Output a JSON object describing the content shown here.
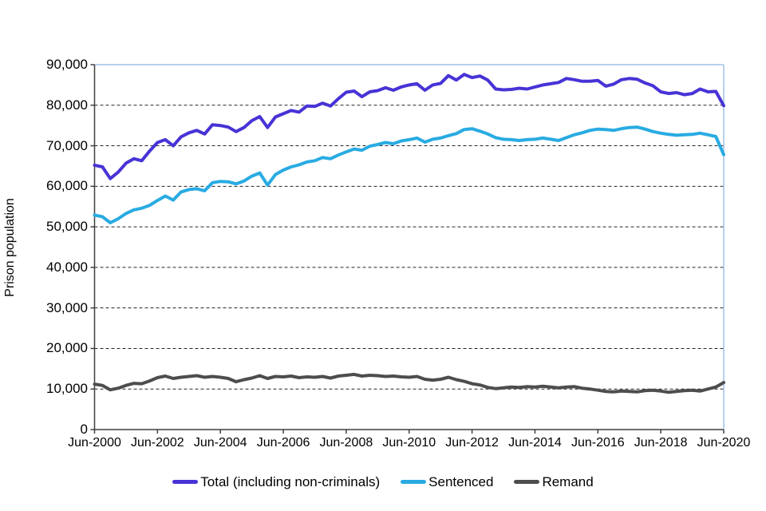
{
  "chart_data": {
    "type": "line",
    "title": "",
    "ylabel": "Prison population",
    "xlabel": "",
    "ylim": [
      0,
      90000
    ],
    "y_tick_step": 10000,
    "y_tick_labels": [
      "0",
      "10,000",
      "20,000",
      "30,000",
      "40,000",
      "50,000",
      "60,000",
      "70,000",
      "80,000",
      "90,000"
    ],
    "x_tick_labels": [
      "Jun-2000",
      "Jun-2002",
      "Jun-2004",
      "Jun-2006",
      "Jun-2008",
      "Jun-2010",
      "Jun-2012",
      "Jun-2014",
      "Jun-2016",
      "Jun-2018",
      "Jun-2020"
    ],
    "x_start": "Jun-2000",
    "x_end": "Jun-2020",
    "x_frequency": "quarterly",
    "grid": "horizontal-dashed",
    "legend_position": "bottom",
    "series": [
      {
        "name": "Total (including non-criminals)",
        "color": "#4733D6",
        "values": [
          65200,
          64800,
          61900,
          63500,
          65700,
          66800,
          66300,
          68700,
          70800,
          71500,
          70000,
          72200,
          73200,
          73800,
          72900,
          75200,
          75000,
          74600,
          73500,
          74500,
          76200,
          77200,
          74500,
          77100,
          77900,
          78700,
          78300,
          79800,
          79700,
          80500,
          79800,
          81600,
          83200,
          83500,
          82100,
          83300,
          83600,
          84300,
          83700,
          84500,
          85000,
          85300,
          83700,
          85000,
          85400,
          87300,
          86200,
          87600,
          86800,
          87200,
          86200,
          84000,
          83800,
          83900,
          84200,
          84000,
          84500,
          85000,
          85300,
          85600,
          86600,
          86300,
          85900,
          85900,
          86100,
          84700,
          85200,
          86300,
          86600,
          86400,
          85500,
          84800,
          83300,
          82900,
          83100,
          82600,
          82900,
          84000,
          83300,
          83400,
          79900
        ]
      },
      {
        "name": "Sentenced",
        "color": "#29ABE2",
        "values": [
          52900,
          52500,
          51000,
          52000,
          53300,
          54200,
          54600,
          55300,
          56500,
          57600,
          56600,
          58600,
          59200,
          59400,
          58900,
          60900,
          61200,
          61100,
          60600,
          61300,
          62500,
          63300,
          60300,
          62900,
          64000,
          64800,
          65300,
          66000,
          66300,
          67100,
          66800,
          67700,
          68500,
          69200,
          68900,
          69900,
          70300,
          70800,
          70500,
          71200,
          71500,
          71900,
          70900,
          71600,
          71900,
          72500,
          73000,
          74000,
          74200,
          73600,
          72900,
          72000,
          71600,
          71500,
          71300,
          71500,
          71600,
          71900,
          71600,
          71300,
          72000,
          72700,
          73200,
          73800,
          74100,
          74000,
          73800,
          74200,
          74500,
          74600,
          74100,
          73500,
          73100,
          72800,
          72600,
          72700,
          72800,
          73100,
          72700,
          72300,
          67800
        ]
      },
      {
        "name": "Remand",
        "color": "#4D4D4D",
        "values": [
          11200,
          10900,
          9800,
          10200,
          10900,
          11400,
          11300,
          12000,
          12800,
          13200,
          12600,
          12900,
          13100,
          13300,
          12900,
          13100,
          12900,
          12600,
          11800,
          12300,
          12700,
          13300,
          12600,
          13100,
          13000,
          13200,
          12800,
          13000,
          12900,
          13100,
          12700,
          13200,
          13400,
          13600,
          13200,
          13400,
          13300,
          13100,
          13200,
          13000,
          12900,
          13100,
          12400,
          12200,
          12400,
          12900,
          12300,
          11900,
          11300,
          11000,
          10400,
          10100,
          10300,
          10500,
          10400,
          10600,
          10500,
          10700,
          10500,
          10300,
          10500,
          10600,
          10200,
          10000,
          9700,
          9400,
          9300,
          9500,
          9400,
          9300,
          9600,
          9700,
          9500,
          9200,
          9400,
          9600,
          9700,
          9500,
          10000,
          10500,
          11600
        ]
      }
    ]
  },
  "colors": {
    "plot_border": "#9DC3E6",
    "gridline": "#262626",
    "axis": "#3F3F3F",
    "text": "#000000"
  }
}
